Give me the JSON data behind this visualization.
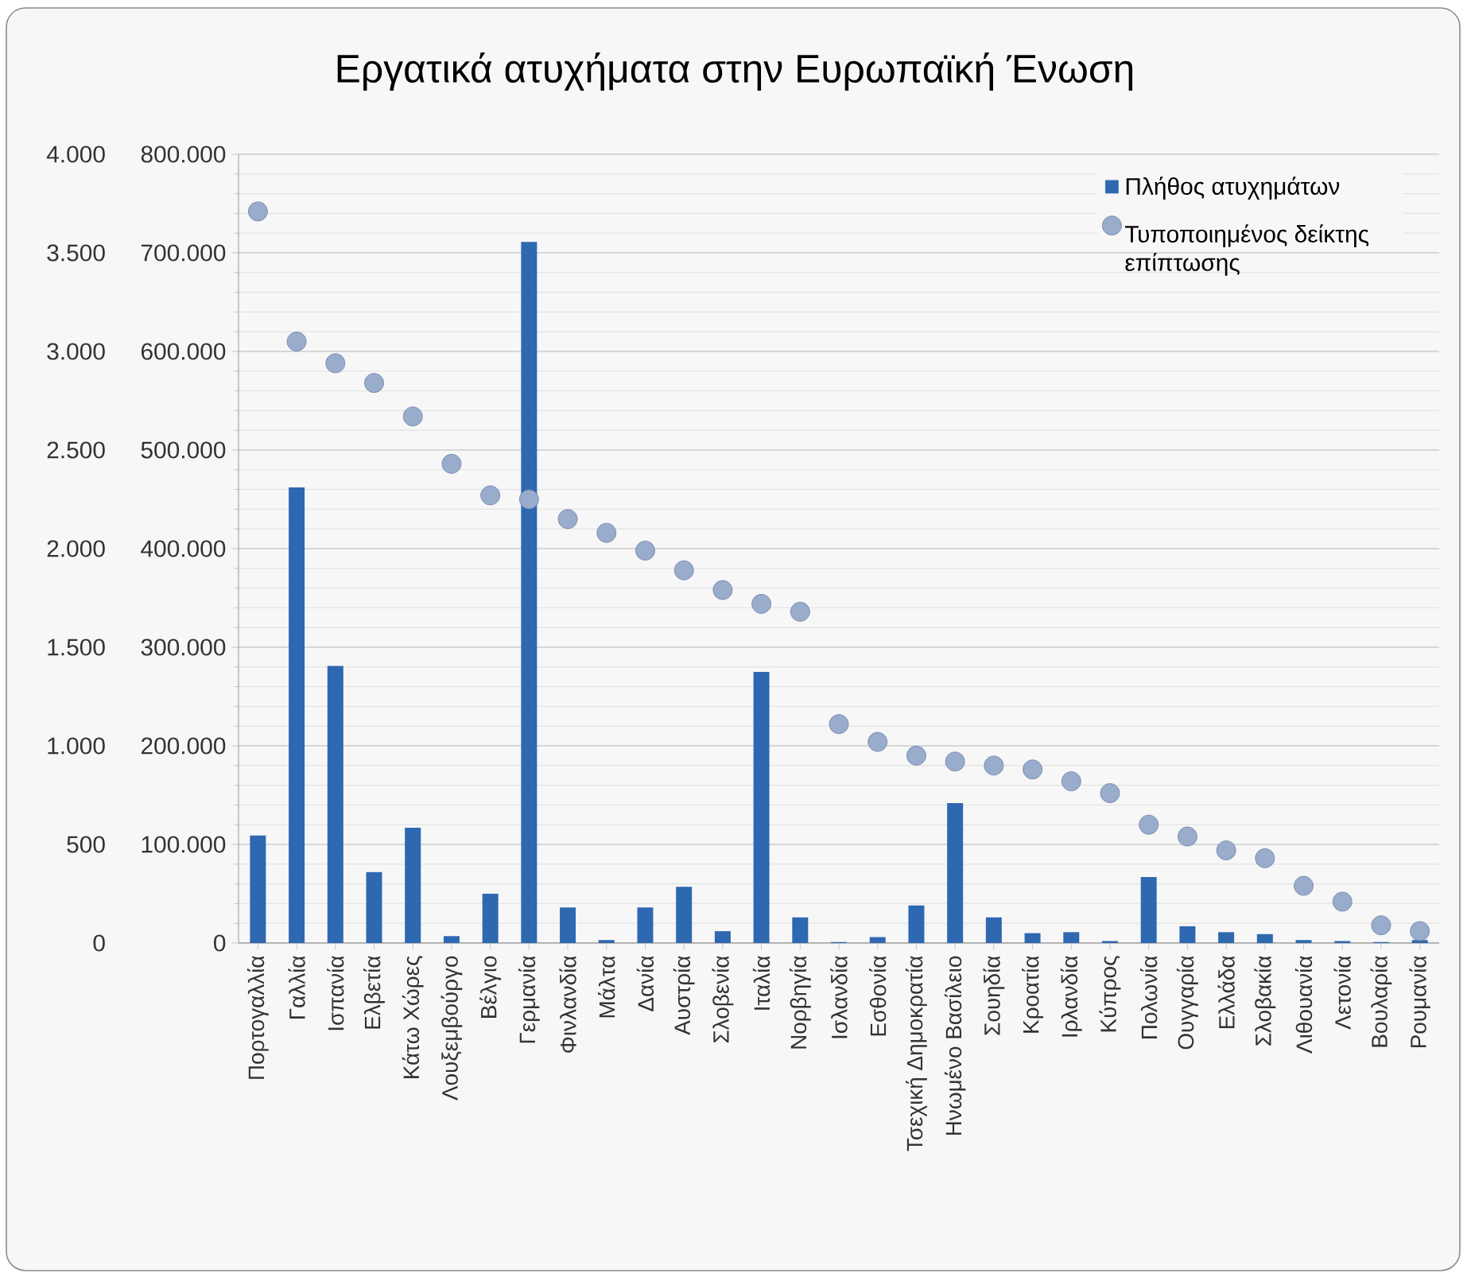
{
  "chart_data": {
    "type": "bar",
    "title": "Εργατικά ατυχήματα στην Ευρωπαϊκή Ένωση",
    "categories": [
      "Πορτογαλλία",
      "Γαλλία",
      "Ισπανία",
      "Ελβετία",
      "Κάτω Χώρες",
      "Λουξεμβούργο",
      "Βέλγιο",
      "Γερμανία",
      "Φινλανδία",
      "Μάλτα",
      "Δανία",
      "Αυστρία",
      "Σλοβενία",
      "Ιταλία",
      "Νορβηγία",
      "Ισλανδία",
      "Εσθονία",
      "Τσεχική Δημοκρατία",
      "Ηνωμένο Βασίλειο",
      "Σουηδία",
      "Κροατία",
      "Ιρλανδία",
      "Κύπρος",
      "Πολωνία",
      "Ουγγαρία",
      "Ελλάδα",
      "Σλοβακία",
      "Λιθουανία",
      "Λετονία",
      "Βουλαρία",
      "Ρουμανία"
    ],
    "series": [
      {
        "name": "Πλήθος ατυχημάτων",
        "color": "#2e68b0",
        "values": [
          109000,
          462000,
          281000,
          72000,
          117000,
          7000,
          50000,
          711000,
          36000,
          3000,
          36000,
          57000,
          12000,
          275000,
          26000,
          1000,
          6000,
          38000,
          142000,
          26000,
          10000,
          11000,
          2000,
          67000,
          17000,
          11000,
          9000,
          3000,
          2000,
          1000,
          3000
        ]
      },
      {
        "name": "Τυποποιημένος δείκτης επίπτωσης",
        "type": "scatter",
        "axis": "y2",
        "color": "#9aaccc",
        "values": [
          3710,
          3050,
          2940,
          2840,
          2670,
          2430,
          2270,
          2250,
          2150,
          2080,
          1990,
          1890,
          1790,
          1720,
          1680,
          1110,
          1020,
          950,
          920,
          900,
          880,
          820,
          760,
          600,
          540,
          470,
          430,
          290,
          210,
          90,
          60
        ]
      }
    ],
    "ylim": [
      0,
      800000
    ],
    "yticks": [
      {
        "value": 0,
        "label": "0"
      },
      {
        "value": 100000,
        "label": "100.000"
      },
      {
        "value": 200000,
        "label": "200.000"
      },
      {
        "value": 300000,
        "label": "300.000"
      },
      {
        "value": 400000,
        "label": "400.000"
      },
      {
        "value": 500000,
        "label": "500.000"
      },
      {
        "value": 600000,
        "label": "600.000"
      },
      {
        "value": 700000,
        "label": "700.000"
      },
      {
        "value": 800000,
        "label": "800.000"
      }
    ],
    "y2lim": [
      0,
      4000
    ],
    "y2ticks": [
      {
        "value": 0,
        "label": "0"
      },
      {
        "value": 500,
        "label": "500"
      },
      {
        "value": 1000,
        "label": "1.000"
      },
      {
        "value": 1500,
        "label": "1.500"
      },
      {
        "value": 2000,
        "label": "2.000"
      },
      {
        "value": 2500,
        "label": "2.500"
      },
      {
        "value": 3000,
        "label": "3.000"
      },
      {
        "value": 3500,
        "label": "3.500"
      },
      {
        "value": 4000,
        "label": "4.000"
      }
    ],
    "grid": "y",
    "legend": "top right"
  }
}
